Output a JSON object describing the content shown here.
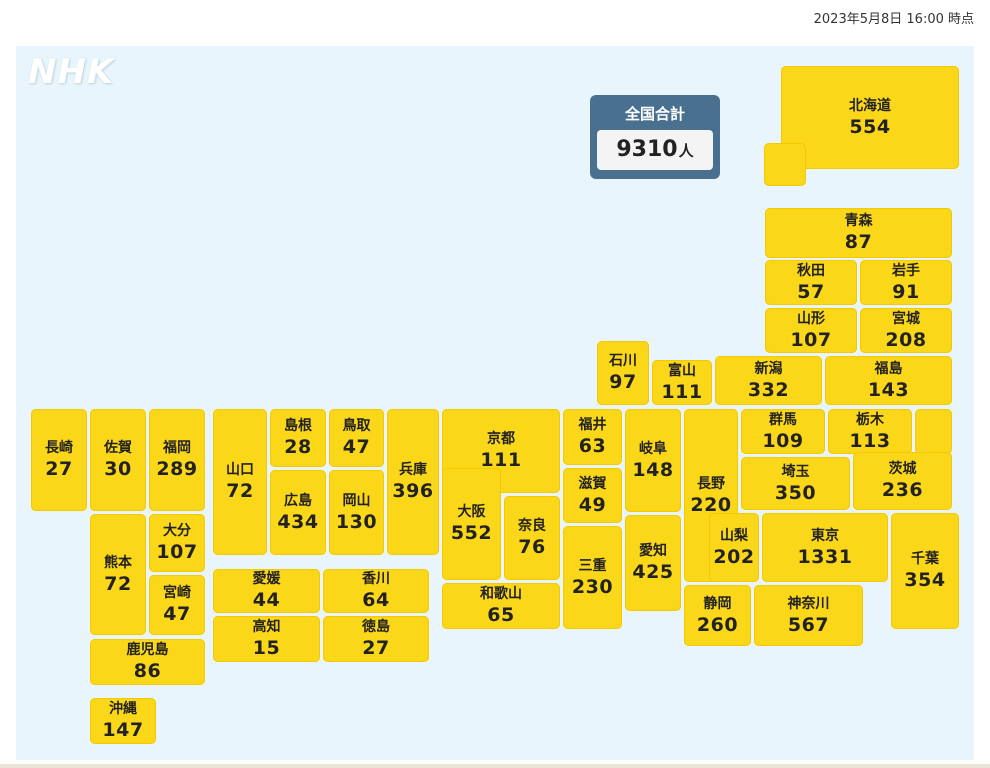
{
  "timestamp": "2023年5月8日 16:00 時点",
  "logo": "NHK",
  "total": {
    "label": "全国合計",
    "value": "9310",
    "unit": "人"
  },
  "colors": {
    "tile": "#fbd719",
    "total_box": "#4a7090",
    "background": "#e9f5fc"
  },
  "prefectures": {
    "hokkaido": {
      "name": "北海道",
      "count": "554"
    },
    "aomori": {
      "name": "青森",
      "count": "87"
    },
    "akita": {
      "name": "秋田",
      "count": "57"
    },
    "iwate": {
      "name": "岩手",
      "count": "91"
    },
    "yamagata": {
      "name": "山形",
      "count": "107"
    },
    "miyagi": {
      "name": "宮城",
      "count": "208"
    },
    "ishikawa": {
      "name": "石川",
      "count": "97"
    },
    "toyama": {
      "name": "富山",
      "count": "111"
    },
    "niigata": {
      "name": "新潟",
      "count": "332"
    },
    "fukushima": {
      "name": "福島",
      "count": "143"
    },
    "nagasaki": {
      "name": "長崎",
      "count": "27"
    },
    "saga": {
      "name": "佐賀",
      "count": "30"
    },
    "fukuoka": {
      "name": "福岡",
      "count": "289"
    },
    "yamaguchi": {
      "name": "山口",
      "count": "72"
    },
    "shimane": {
      "name": "島根",
      "count": "28"
    },
    "tottori": {
      "name": "鳥取",
      "count": "47"
    },
    "hyogo": {
      "name": "兵庫",
      "count": "396"
    },
    "kyoto": {
      "name": "京都",
      "count": "111"
    },
    "fukui": {
      "name": "福井",
      "count": "63"
    },
    "gifu": {
      "name": "岐阜",
      "count": "148"
    },
    "nagano": {
      "name": "長野",
      "count": "220"
    },
    "gunma": {
      "name": "群馬",
      "count": "109"
    },
    "tochigi": {
      "name": "栃木",
      "count": "113"
    },
    "hiroshima": {
      "name": "広島",
      "count": "434"
    },
    "okayama": {
      "name": "岡山",
      "count": "130"
    },
    "osaka": {
      "name": "大阪",
      "count": "552"
    },
    "nara": {
      "name": "奈良",
      "count": "76"
    },
    "shiga": {
      "name": "滋賀",
      "count": "49"
    },
    "saitama": {
      "name": "埼玉",
      "count": "350"
    },
    "ibaraki": {
      "name": "茨城",
      "count": "236"
    },
    "kumamoto": {
      "name": "熊本",
      "count": "72"
    },
    "oita": {
      "name": "大分",
      "count": "107"
    },
    "miyazaki": {
      "name": "宮崎",
      "count": "47"
    },
    "mie": {
      "name": "三重",
      "count": "230"
    },
    "aichi": {
      "name": "愛知",
      "count": "425"
    },
    "yamanashi": {
      "name": "山梨",
      "count": "202"
    },
    "tokyo": {
      "name": "東京",
      "count": "1331"
    },
    "chiba": {
      "name": "千葉",
      "count": "354"
    },
    "ehime": {
      "name": "愛媛",
      "count": "44"
    },
    "kagawa": {
      "name": "香川",
      "count": "64"
    },
    "kochi": {
      "name": "高知",
      "count": "15"
    },
    "tokushima": {
      "name": "徳島",
      "count": "27"
    },
    "wakayama": {
      "name": "和歌山",
      "count": "65"
    },
    "shizuoka": {
      "name": "静岡",
      "count": "260"
    },
    "kanagawa": {
      "name": "神奈川",
      "count": "567"
    },
    "kagoshima": {
      "name": "鹿児島",
      "count": "86"
    },
    "okinawa": {
      "name": "沖縄",
      "count": "147"
    }
  }
}
